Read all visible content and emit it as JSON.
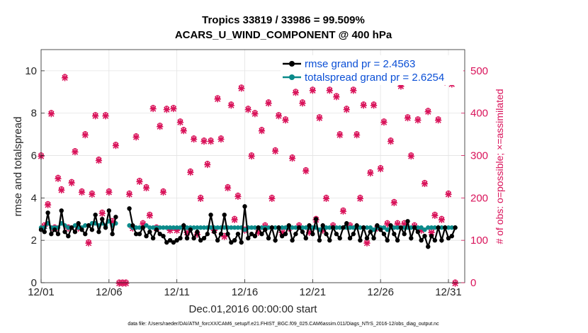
{
  "chart_data": {
    "type": "line",
    "title": "Tropics 33819 / 33986 = 99.509%",
    "subtitle": "ACARS_U_WIND_COMPONENT @ 400 hPa",
    "xlabel": "Dec.01,2016 00:00:00 start",
    "ylabel": "rmse and totalspread",
    "ylabel_right": "# of obs: o=possible; ×=assimilated",
    "footer": "data file: /Users/raeder/DAI/ATM_forcXX/CAM6_setup/f.e21.FHIST_BGC.f09_025.CAM6assim.011/Diags_NTrS_2016-12/obs_diag_output.nc",
    "xlim": [
      1,
      32.2
    ],
    "ylim": [
      0,
      11
    ],
    "ylim_right": [
      0,
      550
    ],
    "x_ticks": [
      1,
      6,
      11,
      16,
      21,
      26,
      31
    ],
    "x_tick_labels": [
      "12/01",
      "12/06",
      "12/11",
      "12/16",
      "12/21",
      "12/26",
      "12/31"
    ],
    "y_ticks": [
      0,
      2,
      4,
      6,
      8,
      10
    ],
    "y_tick_labels": [
      "0",
      "2",
      "4",
      "6",
      "8",
      "10"
    ],
    "y_ticks_right": [
      0,
      100,
      200,
      300,
      400,
      500
    ],
    "y_tick_labels_right": [
      "0",
      "100",
      "200",
      "300",
      "400",
      "500"
    ],
    "legend_position": "top-right",
    "colors": {
      "rmse": "#000000",
      "spread": "#0a8a8a",
      "obs": "#d9135a",
      "legend_text": "#0a4fd6"
    },
    "series": [
      {
        "name": "rmse grand pr = 2.4563",
        "axis": "left",
        "x": [
          1.0,
          1.25,
          1.5,
          1.75,
          2.0,
          2.25,
          2.5,
          2.75,
          3.0,
          3.25,
          3.5,
          3.75,
          4.0,
          4.25,
          4.5,
          4.75,
          5.0,
          5.25,
          5.5,
          5.75,
          6.0,
          6.25,
          6.5,
          null,
          7.5,
          7.75,
          8.0,
          8.25,
          8.5,
          8.75,
          9.0,
          9.25,
          9.5,
          9.75,
          10.0,
          10.25,
          10.5,
          10.75,
          11.0,
          11.25,
          11.5,
          11.75,
          12.0,
          12.25,
          12.5,
          12.75,
          13.0,
          13.25,
          13.5,
          13.75,
          14.0,
          14.25,
          14.5,
          14.75,
          15.0,
          15.25,
          15.5,
          15.75,
          16.0,
          16.25,
          16.5,
          16.75,
          17.0,
          17.25,
          17.5,
          17.75,
          18.0,
          18.25,
          18.5,
          18.75,
          19.0,
          19.25,
          19.5,
          19.75,
          20.0,
          20.25,
          20.5,
          20.75,
          21.0,
          21.25,
          21.5,
          21.75,
          22.0,
          22.25,
          22.5,
          22.75,
          23.0,
          23.25,
          23.5,
          23.75,
          24.0,
          24.25,
          24.5,
          24.75,
          25.0,
          25.25,
          25.5,
          25.75,
          26.0,
          26.25,
          26.5,
          26.75,
          27.0,
          27.25,
          27.5,
          27.75,
          28.0,
          28.25,
          28.5,
          28.75,
          29.0,
          29.25,
          29.5,
          29.75,
          30.0,
          30.25,
          30.5,
          30.75,
          31.0,
          31.25,
          31.5
        ],
        "values": [
          2.5,
          2.4,
          3.3,
          2.3,
          2.5,
          2.3,
          3.4,
          2.4,
          2.2,
          2.6,
          2.4,
          2.8,
          2.5,
          2.3,
          2.7,
          2.5,
          3.2,
          2.4,
          3.0,
          2.6,
          3.4,
          2.3,
          3.1,
          null,
          3.5,
          2.7,
          2.3,
          2.3,
          2.6,
          2.2,
          2.4,
          2.1,
          2.5,
          2.3,
          2.2,
          1.9,
          2.0,
          1.9,
          2.0,
          2.1,
          2.7,
          2.1,
          2.5,
          2.1,
          2.4,
          2.0,
          2.1,
          2.3,
          3.2,
          2.4,
          2.0,
          2.3,
          3.2,
          2.3,
          1.9,
          2.0,
          2.3,
          1.9,
          3.6,
          2.1,
          2.3,
          2.2,
          2.6,
          2.3,
          2.5,
          2.1,
          2.6,
          2.0,
          2.6,
          2.2,
          2.3,
          2.7,
          2.0,
          2.3,
          2.6,
          2.4,
          2.1,
          2.7,
          2.3,
          3.0,
          2.0,
          2.7,
          2.3,
          2.0,
          2.6,
          2.3,
          2.1,
          2.6,
          2.8,
          2.1,
          2.3,
          2.7,
          2.0,
          2.6,
          2.1,
          2.4,
          2.1,
          2.7,
          2.5,
          2.3,
          2.0,
          2.7,
          2.3,
          2.0,
          2.6,
          2.3,
          2.9,
          2.1,
          2.6,
          2.4,
          2.0,
          2.2,
          1.7,
          2.2,
          2.0,
          2.6,
          2.0,
          2.6,
          2.1,
          2.2,
          2.6
        ]
      },
      {
        "name": "totalspread grand pr = 2.6254",
        "axis": "left",
        "x": [
          1.0,
          1.25,
          1.5,
          1.75,
          2.0,
          2.25,
          2.5,
          2.75,
          3.0,
          3.25,
          3.5,
          3.75,
          4.0,
          4.25,
          4.5,
          4.75,
          5.0,
          5.25,
          5.5,
          5.75,
          6.0,
          6.25,
          6.5,
          null,
          7.5,
          7.75,
          8.0,
          8.25,
          8.5,
          8.75,
          9.0,
          9.25,
          9.5,
          9.75,
          10.0,
          10.25,
          10.5,
          10.75,
          11.0,
          11.25,
          11.5,
          11.75,
          12.0,
          12.25,
          12.5,
          12.75,
          13.0,
          13.25,
          13.5,
          13.75,
          14.0,
          14.25,
          14.5,
          14.75,
          15.0,
          15.25,
          15.5,
          15.75,
          16.0,
          16.25,
          16.5,
          16.75,
          17.0,
          17.25,
          17.5,
          17.75,
          18.0,
          18.25,
          18.5,
          18.75,
          19.0,
          19.25,
          19.5,
          19.75,
          20.0,
          20.25,
          20.5,
          20.75,
          21.0,
          21.25,
          21.5,
          21.75,
          22.0,
          22.25,
          22.5,
          22.75,
          23.0,
          23.25,
          23.5,
          23.75,
          24.0,
          24.25,
          24.5,
          24.75,
          25.0,
          25.25,
          25.5,
          25.75,
          26.0,
          26.25,
          26.5,
          26.75,
          27.0,
          27.25,
          27.5,
          27.75,
          28.0,
          28.25,
          28.5,
          28.75,
          29.0,
          29.25,
          29.5,
          29.75,
          30.0,
          30.25,
          30.5,
          30.75,
          31.0,
          31.25,
          31.5
        ],
        "values": [
          2.6,
          2.6,
          2.8,
          2.6,
          2.6,
          2.6,
          2.8,
          2.7,
          2.6,
          2.6,
          2.7,
          2.6,
          2.6,
          2.7,
          2.7,
          2.8,
          2.8,
          2.7,
          2.8,
          2.7,
          2.9,
          2.7,
          2.8,
          null,
          2.7,
          2.6,
          2.6,
          2.6,
          2.6,
          2.7,
          2.6,
          2.6,
          2.6,
          2.6,
          2.6,
          2.6,
          2.6,
          2.6,
          2.6,
          2.6,
          2.6,
          2.6,
          2.6,
          2.6,
          2.6,
          2.6,
          2.6,
          2.6,
          2.6,
          2.6,
          2.6,
          2.6,
          2.6,
          2.6,
          2.6,
          2.6,
          2.6,
          2.6,
          2.5,
          2.6,
          2.6,
          2.6,
          2.6,
          2.6,
          2.6,
          2.6,
          2.6,
          2.6,
          2.6,
          2.6,
          2.6,
          2.6,
          2.6,
          2.6,
          2.6,
          2.6,
          2.6,
          2.6,
          2.6,
          2.6,
          2.5,
          2.6,
          2.6,
          2.6,
          2.6,
          2.6,
          2.6,
          2.6,
          2.6,
          2.6,
          2.6,
          2.6,
          2.6,
          2.6,
          2.6,
          2.6,
          2.5,
          2.6,
          2.6,
          2.6,
          2.5,
          2.6,
          2.6,
          2.6,
          2.6,
          2.6,
          2.6,
          2.6,
          2.6,
          2.6,
          2.6,
          2.5,
          2.6,
          2.6,
          2.6,
          2.6,
          2.6,
          2.6,
          2.6,
          2.6,
          2.6
        ]
      },
      {
        "name": "# of obs (possible / assimilated)",
        "axis": "right",
        "x": [
          1.0,
          1.25,
          1.5,
          1.75,
          2.0,
          2.25,
          2.5,
          2.75,
          3.0,
          3.25,
          3.5,
          3.75,
          4.0,
          4.25,
          4.5,
          4.75,
          5.0,
          5.25,
          5.5,
          5.75,
          6.0,
          6.25,
          6.5,
          6.75,
          7.0,
          7.25,
          7.5,
          7.75,
          8.0,
          8.25,
          8.5,
          8.75,
          9.0,
          9.25,
          9.5,
          9.75,
          10.0,
          10.25,
          10.5,
          10.75,
          11.0,
          11.25,
          11.5,
          11.75,
          12.0,
          12.25,
          12.5,
          12.75,
          13.0,
          13.25,
          13.5,
          13.75,
          14.0,
          14.25,
          14.5,
          14.75,
          15.0,
          15.25,
          15.5,
          15.75,
          16.0,
          16.25,
          16.5,
          16.75,
          17.0,
          17.25,
          17.5,
          17.75,
          18.0,
          18.25,
          18.5,
          18.75,
          19.0,
          19.25,
          19.5,
          19.75,
          20.0,
          20.25,
          20.5,
          20.75,
          21.0,
          21.25,
          21.5,
          21.75,
          22.0,
          22.25,
          22.5,
          22.75,
          23.0,
          23.25,
          23.5,
          23.75,
          24.0,
          24.25,
          24.5,
          24.75,
          25.0,
          25.25,
          25.5,
          25.75,
          26.0,
          26.25,
          26.5,
          26.75,
          27.0,
          27.25,
          27.5,
          27.75,
          28.0,
          28.25,
          28.5,
          28.75,
          29.0,
          29.25,
          29.5,
          29.75,
          30.0,
          30.25,
          30.5,
          30.75,
          31.0,
          31.25,
          31.5
        ],
        "values": [
          300,
          135,
          185,
          400,
          130,
          247,
          220,
          485,
          130,
          237,
          310,
          130,
          215,
          350,
          95,
          210,
          395,
          290,
          165,
          395,
          215,
          145,
          325,
          0,
          0,
          0,
          210,
          130,
          345,
          240,
          140,
          225,
          160,
          412,
          130,
          370,
          215,
          410,
          125,
          412,
          125,
          380,
          360,
          120,
          262,
          340,
          115,
          200,
          335,
          280,
          335,
          125,
          435,
          340,
          110,
          225,
          420,
          150,
          205,
          460,
          125,
          410,
          300,
          400,
          120,
          360,
          135,
          425,
          200,
          312,
          395,
          120,
          385,
          130,
          295,
          450,
          135,
          425,
          265,
          120,
          455,
          150,
          390,
          125,
          200,
          455,
          135,
          440,
          350,
          170,
          410,
          135,
          455,
          350,
          200,
          420,
          95,
          260,
          420,
          130,
          270,
          380,
          140,
          335,
          190,
          140,
          465,
          140,
          390,
          300,
          135,
          385,
          125,
          235,
          405,
          120,
          160,
          385,
          150,
          475,
          210,
          470,
          0
        ]
      }
    ]
  }
}
